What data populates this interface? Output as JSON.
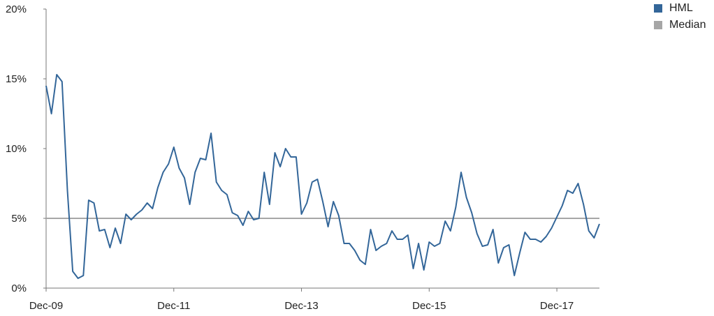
{
  "chart_data": {
    "type": "line",
    "title": "",
    "xlabel": "",
    "ylabel": "",
    "ylim": [
      0,
      20
    ],
    "y_ticks": [
      0,
      5,
      10,
      15,
      20
    ],
    "y_tick_labels": [
      "0%",
      "5%",
      "10%",
      "15%",
      "20%"
    ],
    "x_tick_labels": [
      "Dec-09",
      "Dec-11",
      "Dec-13",
      "Dec-15",
      "Dec-17"
    ],
    "x_tick_index": [
      0,
      24,
      48,
      72,
      96
    ],
    "grid": false,
    "legend_position": "top-right",
    "series": [
      {
        "name": "HML",
        "color": "#336699",
        "values": [
          14.5,
          12.5,
          15.3,
          14.8,
          7.0,
          1.2,
          0.7,
          0.9,
          6.3,
          6.1,
          4.1,
          4.2,
          2.9,
          4.3,
          3.2,
          5.3,
          4.9,
          5.3,
          5.6,
          6.1,
          5.7,
          7.2,
          8.3,
          8.9,
          10.1,
          8.6,
          7.9,
          6.0,
          8.3,
          9.3,
          9.2,
          11.1,
          7.6,
          7.0,
          6.7,
          5.4,
          5.2,
          4.5,
          5.5,
          4.9,
          5.0,
          8.3,
          6.0,
          9.7,
          8.7,
          10.0,
          9.4,
          9.4,
          5.3,
          6.1,
          7.6,
          7.8,
          6.2,
          4.4,
          6.2,
          5.2,
          3.2,
          3.2,
          2.7,
          2.0,
          1.7,
          4.2,
          2.7,
          3.0,
          3.2,
          4.1,
          3.5,
          3.5,
          3.8,
          1.4,
          3.2,
          1.3,
          3.3,
          3.0,
          3.2,
          4.8,
          4.1,
          5.8,
          8.3,
          6.5,
          5.4,
          3.9,
          3.0,
          3.1,
          4.2,
          1.8,
          2.9,
          3.1,
          0.9,
          2.5,
          4.0,
          3.5,
          3.5,
          3.3,
          3.7,
          4.3,
          5.1,
          5.9,
          7.0,
          6.8,
          7.5,
          6.0,
          4.1,
          3.6,
          4.6
        ]
      },
      {
        "name": "Median",
        "color": "#a6a6a6",
        "values": [
          5.0
        ]
      }
    ]
  },
  "legend": {
    "items": [
      {
        "label": "HML",
        "color": "#336699"
      },
      {
        "label": "Median",
        "color": "#a6a6a6"
      }
    ]
  }
}
